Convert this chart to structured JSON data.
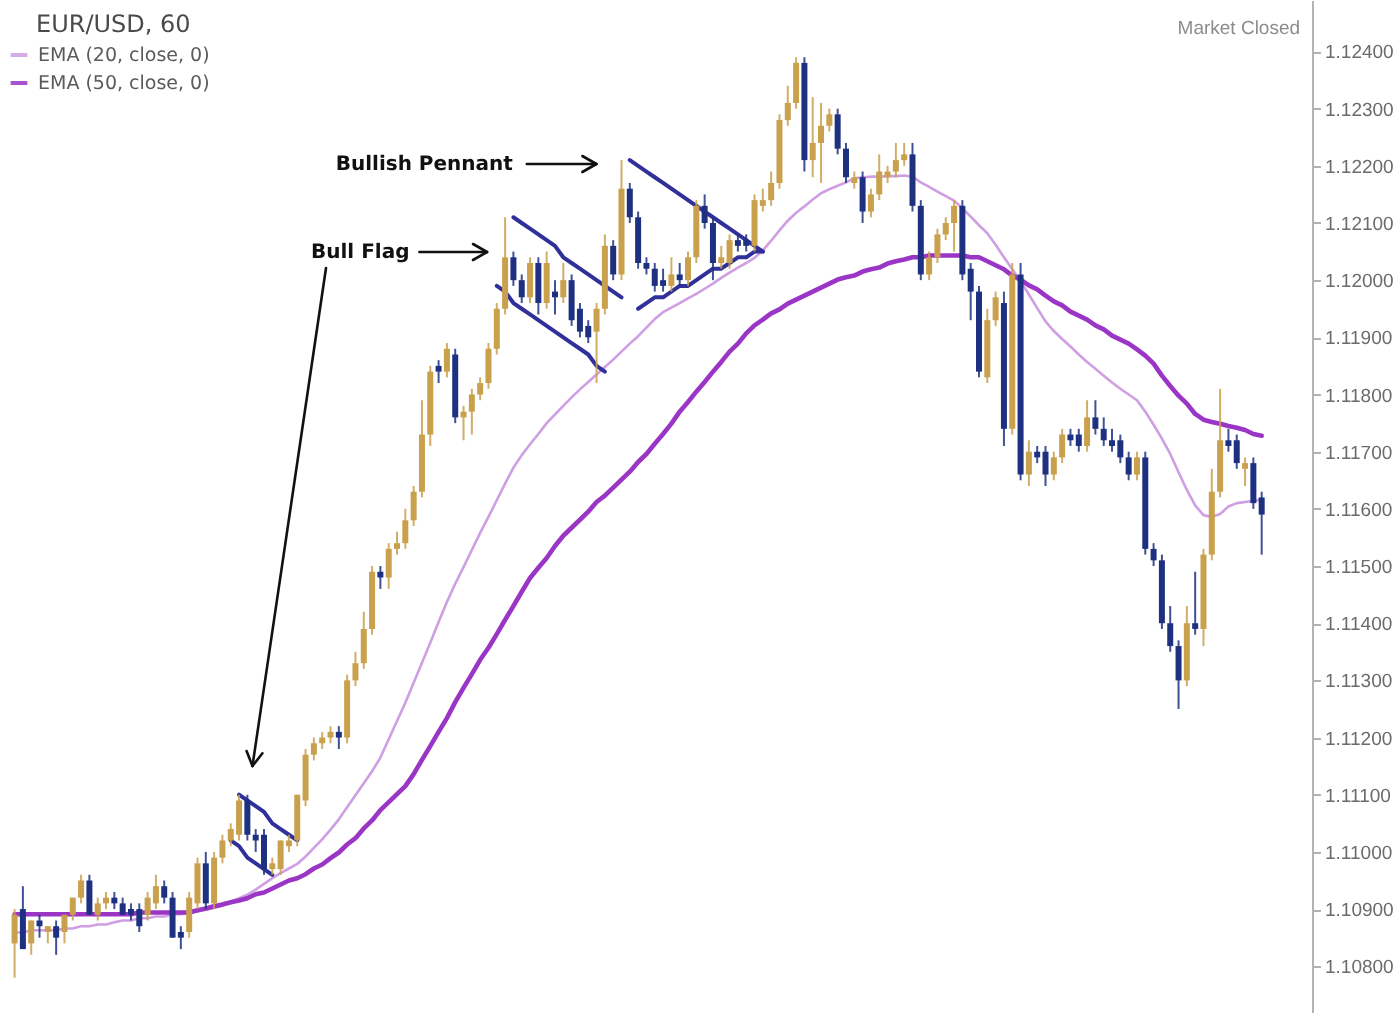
{
  "chart_data": {
    "type": "candlestick",
    "title": "EUR/USD, 60",
    "categories": [
      null,
      null,
      null,
      null,
      null,
      null,
      null,
      null,
      null,
      null,
      null,
      null,
      null,
      null,
      null,
      null,
      null,
      null,
      null,
      null,
      null,
      null,
      null,
      null,
      null,
      null,
      null,
      null,
      null,
      null,
      null,
      null,
      null,
      null,
      null,
      null,
      null,
      null,
      null,
      null,
      null,
      null,
      null,
      null,
      null,
      null,
      null,
      null,
      null,
      null,
      null,
      null,
      null,
      null,
      null,
      null,
      null,
      null,
      null,
      null,
      null,
      null,
      null,
      null,
      null,
      null,
      null,
      null,
      null,
      null,
      null,
      null,
      null,
      null,
      null,
      null,
      null,
      null,
      null,
      null,
      null,
      null,
      null,
      null,
      null,
      null,
      null,
      null,
      null,
      null,
      null,
      null,
      null,
      null,
      null,
      null,
      null,
      null,
      null,
      null,
      null,
      null,
      null,
      null,
      null,
      null,
      null,
      null,
      null,
      null,
      null,
      null,
      null,
      null,
      null,
      null,
      null,
      null,
      null,
      null,
      null,
      null,
      null,
      null,
      null,
      null,
      null,
      null,
      null,
      null,
      null,
      null,
      null,
      null,
      null,
      null,
      null,
      null,
      null,
      null,
      null,
      null,
      null,
      null,
      null,
      null,
      null,
      null,
      null,
      null,
      null
    ],
    "ohlc": [
      [
        1.1084,
        1.109,
        1.1078,
        1.1089
      ],
      [
        1.109,
        1.1094,
        1.1083,
        1.1083
      ],
      [
        1.1084,
        1.1088,
        1.1082,
        1.1088
      ],
      [
        1.1088,
        1.1089,
        1.1085,
        1.1087
      ],
      [
        1.1086,
        1.1087,
        1.1084,
        1.1087
      ],
      [
        1.1087,
        1.1088,
        1.1082,
        1.1085
      ],
      [
        1.1086,
        1.1089,
        1.1084,
        1.1089
      ],
      [
        1.1089,
        1.1092,
        1.1088,
        1.1092
      ],
      [
        1.1092,
        1.1096,
        1.1091,
        1.1095
      ],
      [
        1.1095,
        1.1096,
        1.1089,
        1.1089
      ],
      [
        1.1089,
        1.1092,
        1.1088,
        1.1091
      ],
      [
        1.1091,
        1.1093,
        1.109,
        1.1092
      ],
      [
        1.1092,
        1.1093,
        1.109,
        1.1091
      ],
      [
        1.1091,
        1.1092,
        1.1089,
        1.1089
      ],
      [
        1.109,
        1.1091,
        1.1088,
        1.1089
      ],
      [
        1.109,
        1.1091,
        1.1086,
        1.1087
      ],
      [
        1.1089,
        1.1093,
        1.1088,
        1.1092
      ],
      [
        1.1091,
        1.1096,
        1.109,
        1.1094
      ],
      [
        1.1094,
        1.1095,
        1.1091,
        1.1092
      ],
      [
        1.1092,
        1.1093,
        1.1085,
        1.1085
      ],
      [
        1.1086,
        1.1087,
        1.1083,
        1.1085
      ],
      [
        1.1086,
        1.1093,
        1.1085,
        1.1092
      ],
      [
        1.1091,
        1.1099,
        1.109,
        1.1098
      ],
      [
        1.1098,
        1.11,
        1.109,
        1.1091
      ],
      [
        1.1091,
        1.11,
        1.109,
        1.1099
      ],
      [
        1.1099,
        1.1103,
        1.1098,
        1.1102
      ],
      [
        1.1102,
        1.1105,
        1.1101,
        1.1104
      ],
      [
        1.1103,
        1.111,
        1.1102,
        1.1109
      ],
      [
        1.1109,
        1.111,
        1.1102,
        1.1103
      ],
      [
        1.1103,
        1.1104,
        1.11,
        1.1102
      ],
      [
        1.1103,
        1.1104,
        1.1096,
        1.1097
      ],
      [
        1.1097,
        1.1099,
        1.1096,
        1.1098
      ],
      [
        1.1097,
        1.1102,
        1.1096,
        1.1102
      ],
      [
        1.1101,
        1.1103,
        1.11,
        1.1102
      ],
      [
        1.1102,
        1.111,
        1.1101,
        1.111
      ],
      [
        1.1109,
        1.1118,
        1.1108,
        1.1117
      ],
      [
        1.1117,
        1.112,
        1.1116,
        1.1119
      ],
      [
        1.1119,
        1.1121,
        1.1118,
        1.112
      ],
      [
        1.112,
        1.1122,
        1.1119,
        1.1121
      ],
      [
        1.1121,
        1.1122,
        1.1118,
        1.112
      ],
      [
        1.112,
        1.1131,
        1.1119,
        1.113
      ],
      [
        1.113,
        1.1135,
        1.1129,
        1.1133
      ],
      [
        1.1133,
        1.1142,
        1.1132,
        1.1139
      ],
      [
        1.1139,
        1.115,
        1.1138,
        1.1149
      ],
      [
        1.1149,
        1.115,
        1.1146,
        1.1148
      ],
      [
        1.1148,
        1.1154,
        1.1146,
        1.1153
      ],
      [
        1.1153,
        1.1156,
        1.1152,
        1.1154
      ],
      [
        1.1154,
        1.116,
        1.1153,
        1.1158
      ],
      [
        1.1158,
        1.1164,
        1.1157,
        1.1163
      ],
      [
        1.1163,
        1.1179,
        1.1162,
        1.1173
      ],
      [
        1.1173,
        1.1185,
        1.1171,
        1.1184
      ],
      [
        1.1185,
        1.1186,
        1.1182,
        1.1184
      ],
      [
        1.1184,
        1.1189,
        1.1183,
        1.1188
      ],
      [
        1.1187,
        1.1188,
        1.1175,
        1.1176
      ],
      [
        1.1176,
        1.1178,
        1.1172,
        1.1177
      ],
      [
        1.1177,
        1.1181,
        1.1173,
        1.118
      ],
      [
        1.118,
        1.1183,
        1.1179,
        1.1182
      ],
      [
        1.1182,
        1.1189,
        1.1181,
        1.1188
      ],
      [
        1.1188,
        1.1196,
        1.1187,
        1.1195
      ],
      [
        1.1195,
        1.1211,
        1.1194,
        1.1204
      ],
      [
        1.1204,
        1.1205,
        1.1199,
        1.12
      ],
      [
        1.12,
        1.1201,
        1.1196,
        1.1197
      ],
      [
        1.1197,
        1.1204,
        1.1196,
        1.1203
      ],
      [
        1.1203,
        1.1204,
        1.1194,
        1.1196
      ],
      [
        1.1196,
        1.1205,
        1.1195,
        1.1203
      ],
      [
        1.1198,
        1.12,
        1.1194,
        1.1197
      ],
      [
        1.1197,
        1.1203,
        1.1196,
        1.12
      ],
      [
        1.12,
        1.1201,
        1.1192,
        1.1193
      ],
      [
        1.1195,
        1.1196,
        1.119,
        1.1191
      ],
      [
        1.1192,
        1.1193,
        1.1189,
        1.119
      ],
      [
        1.1191,
        1.1196,
        1.1182,
        1.1195
      ],
      [
        1.1195,
        1.1208,
        1.1194,
        1.1206
      ],
      [
        1.1206,
        1.1207,
        1.12,
        1.1201
      ],
      [
        1.1201,
        1.1221,
        1.12,
        1.1216
      ],
      [
        1.1216,
        1.1217,
        1.121,
        1.1211
      ],
      [
        1.1211,
        1.1212,
        1.1202,
        1.1203
      ],
      [
        1.1203,
        1.1204,
        1.1201,
        1.1202
      ],
      [
        1.1202,
        1.1203,
        1.1198,
        1.1199
      ],
      [
        1.12,
        1.1202,
        1.1198,
        1.1199
      ],
      [
        1.1199,
        1.1204,
        1.1198,
        1.1201
      ],
      [
        1.1201,
        1.1203,
        1.1199,
        1.12
      ],
      [
        1.12,
        1.1205,
        1.1199,
        1.1204
      ],
      [
        1.1204,
        1.1214,
        1.1203,
        1.1213
      ],
      [
        1.1213,
        1.1215,
        1.1209,
        1.121
      ],
      [
        1.121,
        1.1211,
        1.12,
        1.1203
      ],
      [
        1.1203,
        1.1206,
        1.1202,
        1.1204
      ],
      [
        1.1203,
        1.1208,
        1.1202,
        1.1207
      ],
      [
        1.1207,
        1.1208,
        1.1205,
        1.1206
      ],
      [
        1.1207,
        1.1208,
        1.1205,
        1.1206
      ],
      [
        1.1206,
        1.1215,
        1.1205,
        1.1214
      ],
      [
        1.1213,
        1.1216,
        1.1212,
        1.1214
      ],
      [
        1.1214,
        1.1219,
        1.1213,
        1.1217
      ],
      [
        1.1217,
        1.1229,
        1.1216,
        1.1228
      ],
      [
        1.1228,
        1.1234,
        1.1227,
        1.1231
      ],
      [
        1.1231,
        1.1239,
        1.123,
        1.1238
      ],
      [
        1.1238,
        1.1239,
        1.1219,
        1.1221
      ],
      [
        1.1221,
        1.1232,
        1.1218,
        1.1224
      ],
      [
        1.1224,
        1.1231,
        1.1217,
        1.1227
      ],
      [
        1.1227,
        1.123,
        1.1226,
        1.1229
      ],
      [
        1.1229,
        1.123,
        1.1222,
        1.1223
      ],
      [
        1.1223,
        1.1224,
        1.1217,
        1.1218
      ],
      [
        1.1217,
        1.1219,
        1.1216,
        1.1218
      ],
      [
        1.1218,
        1.1219,
        1.121,
        1.1212
      ],
      [
        1.1212,
        1.1216,
        1.1211,
        1.1215
      ],
      [
        1.1215,
        1.1222,
        1.1214,
        1.1219
      ],
      [
        1.1218,
        1.122,
        1.1217,
        1.1219
      ],
      [
        1.1219,
        1.1224,
        1.1218,
        1.1221
      ],
      [
        1.1221,
        1.1224,
        1.122,
        1.1222
      ],
      [
        1.1222,
        1.1224,
        1.1212,
        1.1213
      ],
      [
        1.1213,
        1.1214,
        1.12,
        1.1201
      ],
      [
        1.1201,
        1.1205,
        1.12,
        1.1204
      ],
      [
        1.1204,
        1.1209,
        1.1203,
        1.1208
      ],
      [
        1.1208,
        1.1211,
        1.1207,
        1.121
      ],
      [
        1.121,
        1.1214,
        1.1205,
        1.1213
      ],
      [
        1.1213,
        1.1214,
        1.12,
        1.1201
      ],
      [
        1.1202,
        1.1203,
        1.1193,
        1.1198
      ],
      [
        1.1198,
        1.1199,
        1.1183,
        1.1184
      ],
      [
        1.1183,
        1.1195,
        1.1182,
        1.1193
      ],
      [
        1.1193,
        1.1198,
        1.1192,
        1.1197
      ],
      [
        1.1196,
        1.1198,
        1.1171,
        1.1174
      ],
      [
        1.1174,
        1.1203,
        1.1173,
        1.1201
      ],
      [
        1.1201,
        1.1203,
        1.1165,
        1.1166
      ],
      [
        1.1166,
        1.1172,
        1.1164,
        1.117
      ],
      [
        1.117,
        1.1171,
        1.1168,
        1.1169
      ],
      [
        1.117,
        1.1171,
        1.1164,
        1.1166
      ],
      [
        1.1166,
        1.117,
        1.1165,
        1.1169
      ],
      [
        1.1169,
        1.1174,
        1.1168,
        1.1173
      ],
      [
        1.1173,
        1.1174,
        1.1171,
        1.1172
      ],
      [
        1.1173,
        1.1174,
        1.117,
        1.1171
      ],
      [
        1.1171,
        1.1179,
        1.117,
        1.1176
      ],
      [
        1.1176,
        1.1179,
        1.1173,
        1.1174
      ],
      [
        1.1174,
        1.1176,
        1.1171,
        1.1172
      ],
      [
        1.1172,
        1.1174,
        1.117,
        1.1171
      ],
      [
        1.1172,
        1.1173,
        1.1168,
        1.1169
      ],
      [
        1.1169,
        1.117,
        1.1165,
        1.1166
      ],
      [
        1.1166,
        1.117,
        1.1165,
        1.1169
      ],
      [
        1.1169,
        1.117,
        1.1152,
        1.1153
      ],
      [
        1.1153,
        1.1154,
        1.115,
        1.1151
      ],
      [
        1.1151,
        1.1152,
        1.1139,
        1.114
      ],
      [
        1.114,
        1.1143,
        1.1135,
        1.1136
      ],
      [
        1.1136,
        1.1137,
        1.1125,
        1.113
      ],
      [
        1.113,
        1.1143,
        1.1129,
        1.114
      ],
      [
        1.114,
        1.1149,
        1.1138,
        1.1139
      ],
      [
        1.1139,
        1.1153,
        1.1136,
        1.1152
      ],
      [
        1.1152,
        1.1167,
        1.1151,
        1.1163
      ],
      [
        1.1163,
        1.1181,
        1.1162,
        1.1172
      ],
      [
        1.1172,
        1.1174,
        1.117,
        1.1171
      ],
      [
        1.1172,
        1.1173,
        1.1167,
        1.1168
      ],
      [
        1.1167,
        1.1169,
        1.1164,
        1.1168
      ],
      [
        1.1168,
        1.1169,
        1.116,
        1.1161
      ],
      [
        1.1162,
        1.1163,
        1.1152,
        1.1159
      ]
    ],
    "colors": [
      "#c9a04b",
      "#1e3181",
      "#c9a04b",
      "#1e3181",
      "#c9a04b",
      "#1e3181",
      "#c9a04b",
      "#c9a04b",
      "#c9a04b",
      "#1e3181",
      "#c9a04b",
      "#c9a04b",
      "#1e3181",
      "#1e3181",
      "#1e3181",
      "#1e3181",
      "#c9a04b",
      "#c9a04b",
      "#1e3181",
      "#1e3181",
      "#1e3181",
      "#c9a04b",
      "#c9a04b",
      "#1e3181",
      "#c9a04b",
      "#c9a04b",
      "#c9a04b",
      "#c9a04b",
      "#1e3181",
      "#1e3181",
      "#1e3181",
      "#c9a04b",
      "#c9a04b",
      "#c9a04b",
      "#c9a04b",
      "#c9a04b",
      "#c9a04b",
      "#c9a04b",
      "#c9a04b",
      "#1e3181",
      "#c9a04b",
      "#c9a04b",
      "#c9a04b",
      "#c9a04b",
      "#1e3181",
      "#c9a04b",
      "#c9a04b",
      "#c9a04b",
      "#c9a04b",
      "#c9a04b",
      "#c9a04b",
      "#1e3181",
      "#c9a04b",
      "#1e3181",
      "#c9a04b",
      "#c9a04b",
      "#c9a04b",
      "#c9a04b",
      "#c9a04b",
      "#c9a04b",
      "#1e3181",
      "#1e3181",
      "#c9a04b",
      "#1e3181",
      "#c9a04b",
      "#1e3181",
      "#c9a04b",
      "#1e3181",
      "#1e3181",
      "#1e3181",
      "#c9a04b",
      "#c9a04b",
      "#1e3181",
      "#c9a04b",
      "#1e3181",
      "#1e3181",
      "#1e3181",
      "#1e3181",
      "#1e3181",
      "#c9a04b",
      "#1e3181",
      "#c9a04b",
      "#c9a04b",
      "#1e3181",
      "#1e3181",
      "#c9a04b",
      "#c9a04b",
      "#1e3181",
      "#1e3181",
      "#c9a04b",
      "#c9a04b",
      "#c9a04b",
      "#c9a04b",
      "#c9a04b",
      "#c9a04b",
      "#1e3181",
      "#c9a04b",
      "#c9a04b",
      "#c9a04b",
      "#1e3181",
      "#1e3181",
      "#c9a04b",
      "#1e3181",
      "#c9a04b",
      "#c9a04b",
      "#c9a04b",
      "#c9a04b",
      "#c9a04b",
      "#1e3181",
      "#1e3181",
      "#c9a04b",
      "#c9a04b",
      "#c9a04b",
      "#c9a04b",
      "#1e3181",
      "#1e3181",
      "#1e3181",
      "#c9a04b",
      "#c9a04b",
      "#1e3181",
      "#c9a04b",
      "#1e3181",
      "#c9a04b",
      "#1e3181",
      "#1e3181",
      "#c9a04b",
      "#c9a04b",
      "#1e3181",
      "#1e3181",
      "#c9a04b",
      "#1e3181",
      "#1e3181",
      "#1e3181",
      "#1e3181",
      "#1e3181",
      "#c9a04b",
      "#1e3181",
      "#1e3181",
      "#1e3181",
      "#1e3181",
      "#1e3181",
      "#c9a04b",
      "#1e3181",
      "#c9a04b",
      "#c9a04b",
      "#c9a04b",
      "#1e3181",
      "#1e3181",
      "#c9a04b",
      "#1e3181",
      "#1e3181"
    ],
    "series": [
      {
        "name": "EMA (20, close, 0)",
        "type": "line",
        "color": "#cf9ee3",
        "values": [
          1.10859,
          1.10859,
          1.10863,
          1.10863,
          1.10863,
          1.10863,
          1.10866,
          1.10866,
          1.1087,
          1.1087,
          1.10873,
          1.10873,
          1.10877,
          1.1088,
          1.1088,
          1.10884,
          1.10884,
          1.10887,
          1.10887,
          1.10891,
          1.10891,
          1.10894,
          1.10896,
          1.10899,
          1.10902,
          1.10906,
          1.10913,
          1.10919,
          1.10925,
          1.10934,
          1.10944,
          1.10954,
          1.10963,
          1.10971,
          1.10979,
          1.10992,
          1.11007,
          1.11022,
          1.11039,
          1.11057,
          1.11078,
          1.11099,
          1.1112,
          1.11141,
          1.11165,
          1.11197,
          1.11229,
          1.11261,
          1.11296,
          1.11331,
          1.11366,
          1.11402,
          1.11437,
          1.11469,
          1.11498,
          1.11528,
          1.11558,
          1.11586,
          1.11615,
          1.11644,
          1.11672,
          1.11694,
          1.11713,
          1.11731,
          1.1175,
          1.11765,
          1.1178,
          1.11795,
          1.11809,
          1.11822,
          1.11835,
          1.11848,
          1.11861,
          1.11875,
          1.11889,
          1.11902,
          1.11917,
          1.11932,
          1.11944,
          1.11952,
          1.1196,
          1.11968,
          1.11976,
          1.11985,
          1.11994,
          1.12004,
          1.12013,
          1.12022,
          1.1203,
          1.12039,
          1.12052,
          1.12069,
          1.12087,
          1.12104,
          1.12118,
          1.12129,
          1.12141,
          1.12152,
          1.12159,
          1.12165,
          1.12171,
          1.12178,
          1.1218,
          1.12181,
          1.12181,
          1.12182,
          1.12182,
          1.12183,
          1.12181,
          1.12171,
          1.12163,
          1.12155,
          1.12147,
          1.12139,
          1.12126,
          1.12111,
          1.12096,
          1.12082,
          1.12062,
          1.1204,
          1.12019,
          1.11998,
          1.11975,
          1.11951,
          1.11928,
          1.11911,
          1.11897,
          1.11884,
          1.1187,
          1.11857,
          1.11845,
          1.11833,
          1.11821,
          1.1181,
          1.118,
          1.1179,
          1.1177,
          1.11747,
          1.11723,
          1.11696,
          1.11664,
          1.11633,
          1.11606,
          1.11589,
          1.11586,
          1.11591,
          1.11604,
          1.1161,
          1.11612,
          1.11614,
          1.11616
        ]
      },
      {
        "name": "EMA (50, close, 0)",
        "type": "line",
        "color": "#9a35c6",
        "values": [
          1.10891,
          1.10891,
          1.10891,
          1.10891,
          1.10891,
          1.10891,
          1.10891,
          1.10891,
          1.10891,
          1.10891,
          1.10891,
          1.10891,
          1.10891,
          1.10891,
          1.10891,
          1.10894,
          1.10894,
          1.10894,
          1.10894,
          1.10894,
          1.10894,
          1.10894,
          1.10898,
          1.10901,
          1.10905,
          1.10908,
          1.10912,
          1.10915,
          1.10919,
          1.10926,
          1.10929,
          1.10936,
          1.10943,
          1.1095,
          1.10954,
          1.10961,
          1.10971,
          1.10978,
          1.10989,
          1.10999,
          1.11013,
          1.11024,
          1.11041,
          1.11055,
          1.11073,
          1.11087,
          1.11101,
          1.11115,
          1.11136,
          1.11161,
          1.11185,
          1.1121,
          1.11234,
          1.11262,
          1.11287,
          1.11311,
          1.11336,
          1.11357,
          1.11381,
          1.11406,
          1.1143,
          1.11455,
          1.11479,
          1.11497,
          1.11514,
          1.11535,
          1.11553,
          1.11567,
          1.11581,
          1.11595,
          1.11612,
          1.11623,
          1.11637,
          1.11651,
          1.11665,
          1.11682,
          1.11696,
          1.11714,
          1.11731,
          1.11749,
          1.1177,
          1.11787,
          1.11805,
          1.11822,
          1.1184,
          1.11857,
          1.11875,
          1.11889,
          1.11907,
          1.11921,
          1.11931,
          1.11942,
          1.11949,
          1.11959,
          1.11966,
          1.11973,
          1.1198,
          1.11987,
          1.11994,
          1.12001,
          1.12005,
          1.12008,
          1.12015,
          1.12019,
          1.12022,
          1.12029,
          1.12033,
          1.12036,
          1.1204,
          1.1204,
          1.12043,
          1.12043,
          1.12043,
          1.12043,
          1.12043,
          1.1204,
          1.1204,
          1.12033,
          1.12026,
          1.12019,
          1.12008,
          1.12001,
          1.11991,
          1.11984,
          1.11973,
          1.11963,
          1.11956,
          1.11945,
          1.11938,
          1.11931,
          1.11921,
          1.11914,
          1.11903,
          1.11896,
          1.11889,
          1.11879,
          1.11868,
          1.11854,
          1.11833,
          1.11815,
          1.11798,
          1.11784,
          1.11766,
          1.11756,
          1.11752,
          1.11749,
          1.11745,
          1.11742,
          1.11738,
          1.11731,
          1.11728
        ]
      },
      {
        "type": "line",
        "color": "#30309a",
        "values": [
          null,
          null,
          null,
          null,
          null,
          null,
          null,
          null,
          null,
          null,
          null,
          null,
          null,
          null,
          null,
          null,
          null,
          null,
          null,
          null,
          null,
          null,
          null,
          null,
          null,
          null,
          null,
          1.111,
          1.1109,
          1.1108,
          1.1107,
          1.1105,
          1.1104,
          1.1103,
          1.1102,
          null,
          null,
          null,
          null,
          null,
          null,
          null,
          null,
          null,
          null,
          null,
          null,
          null,
          null,
          null,
          null,
          null,
          null,
          null,
          null,
          null,
          null,
          null,
          1.1199,
          1.1198,
          1.1196,
          1.1195,
          1.1194,
          1.1193,
          1.1192,
          1.1191,
          1.119,
          1.1189,
          1.1188,
          1.1187,
          1.1185,
          1.1184,
          null,
          null,
          null,
          1.1195,
          1.1196,
          1.1197,
          1.1197,
          1.1198,
          1.1199,
          1.1199,
          1.12,
          1.1201,
          1.1202,
          1.1202,
          1.1203,
          1.1204,
          1.1204,
          1.1205,
          1.1205,
          null,
          null,
          null,
          null,
          null,
          null,
          null,
          null,
          null,
          null,
          null,
          null,
          null,
          null,
          null,
          null,
          null,
          null,
          null,
          null,
          null,
          null,
          null,
          null,
          null,
          null,
          null,
          null,
          null,
          null,
          null,
          null,
          null,
          null,
          null,
          null,
          null,
          null,
          null,
          null,
          null,
          null,
          null,
          null,
          null,
          null,
          null,
          null,
          null,
          null,
          null,
          null,
          null,
          null,
          null,
          null,
          null,
          null,
          null,
          null
        ]
      },
      {
        "type": "line",
        "color": "#30309a",
        "values": [
          null,
          null,
          null,
          null,
          null,
          null,
          null,
          null,
          null,
          null,
          null,
          null,
          null,
          null,
          null,
          null,
          null,
          null,
          null,
          null,
          null,
          null,
          null,
          null,
          null,
          null,
          1.1102,
          1.1101,
          1.1099,
          1.1098,
          1.1097,
          1.1096,
          null,
          null,
          null,
          null,
          null,
          null,
          null,
          null,
          null,
          null,
          null,
          null,
          null,
          null,
          null,
          null,
          null,
          null,
          null,
          null,
          null,
          null,
          null,
          null,
          null,
          null,
          null,
          null,
          1.1211,
          1.121,
          1.1209,
          1.1208,
          1.1207,
          1.1206,
          1.1204,
          1.1203,
          1.1202,
          1.1201,
          1.12,
          1.1199,
          1.1198,
          1.1197,
          null,
          null,
          null,
          null,
          null,
          null,
          null,
          null,
          null,
          null,
          null,
          null,
          null,
          null,
          null,
          null,
          null,
          null,
          null,
          null,
          null,
          null,
          null,
          null,
          null,
          null,
          null,
          null,
          null,
          null,
          null,
          null,
          null,
          null,
          null,
          null,
          null,
          null,
          null,
          null,
          null,
          null,
          null,
          null,
          null,
          null,
          null,
          null,
          null,
          null,
          null,
          null,
          null,
          null,
          null,
          null,
          null,
          null,
          null,
          null,
          null,
          null,
          null,
          null,
          null,
          null,
          null,
          null,
          null,
          null,
          null,
          null,
          null,
          null,
          null,
          null,
          null
        ]
      },
      {
        "type": "line",
        "color": "#30309a",
        "values": [
          null,
          null,
          null,
          null,
          null,
          null,
          null,
          null,
          null,
          null,
          null,
          null,
          null,
          null,
          null,
          null,
          null,
          null,
          null,
          null,
          null,
          null,
          null,
          null,
          null,
          null,
          null,
          null,
          null,
          null,
          null,
          null,
          null,
          null,
          null,
          null,
          null,
          null,
          null,
          null,
          null,
          null,
          null,
          null,
          null,
          null,
          null,
          null,
          null,
          null,
          null,
          null,
          null,
          null,
          null,
          null,
          null,
          null,
          null,
          null,
          null,
          null,
          null,
          null,
          null,
          null,
          null,
          null,
          null,
          null,
          null,
          null,
          null,
          null,
          1.1221,
          1.122,
          1.1219,
          1.1218,
          1.1217,
          1.1216,
          1.1215,
          1.1214,
          1.1213,
          1.1212,
          1.1211,
          1.121,
          1.1209,
          1.1208,
          1.1207,
          1.1206,
          1.1205,
          null,
          null,
          null,
          null,
          null,
          null,
          null,
          null,
          null,
          null,
          null,
          null,
          null,
          null,
          null,
          null,
          null,
          null,
          null,
          null,
          null,
          null,
          null,
          null,
          null,
          null,
          null,
          null,
          null,
          null,
          null,
          null,
          null,
          null,
          null,
          null,
          null,
          null,
          null,
          null,
          null,
          null,
          null,
          null,
          null,
          null,
          null,
          null,
          null,
          null,
          null,
          null,
          null,
          null,
          null,
          null,
          null,
          null,
          null,
          null
        ]
      }
    ],
    "ylim": [
      1.1072,
      1.1249
    ],
    "yticks": [
      {
        "value": 1.108,
        "label": "1.10800"
      },
      {
        "value": 1.109,
        "label": "1.10900"
      },
      {
        "value": 1.11,
        "label": "1.11000"
      },
      {
        "value": 1.111,
        "label": "1.11100"
      },
      {
        "value": 1.112,
        "label": "1.11200"
      },
      {
        "value": 1.113,
        "label": "1.11300"
      },
      {
        "value": 1.114,
        "label": "1.11400"
      },
      {
        "value": 1.115,
        "label": "1.11500"
      },
      {
        "value": 1.116,
        "label": "1.11600"
      },
      {
        "value": 1.117,
        "label": "1.11700"
      },
      {
        "value": 1.118,
        "label": "1.11800"
      },
      {
        "value": 1.119,
        "label": "1.11900"
      },
      {
        "value": 1.12,
        "label": "1.12000"
      },
      {
        "value": 1.121,
        "label": "1.12100"
      },
      {
        "value": 1.122,
        "label": "1.12200"
      },
      {
        "value": 1.123,
        "label": "1.12300"
      },
      {
        "value": 1.124,
        "label": "1.12400"
      }
    ],
    "annotations": [
      "Bullish Pennant",
      "Bull Flag",
      "Market Closed"
    ],
    "legend": "top left",
    "tick_labels": "y"
  }
}
